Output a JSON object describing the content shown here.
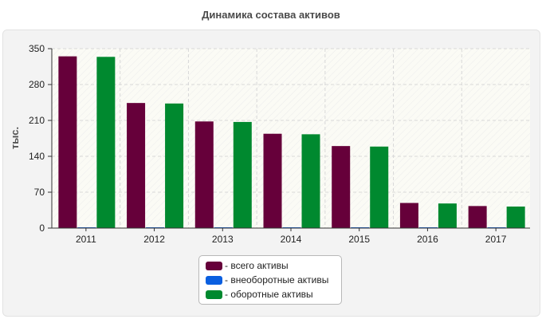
{
  "chart_data": {
    "type": "bar",
    "title": "Динамика состава активов",
    "ylabel": "тыс.",
    "xlabel": "",
    "ylim": [
      0,
      350
    ],
    "yticks": [
      0,
      70,
      140,
      210,
      280,
      350
    ],
    "categories": [
      "2011",
      "2012",
      "2013",
      "2014",
      "2015",
      "2016",
      "2017"
    ],
    "series": [
      {
        "name": "- всего активы",
        "color": "#66003a",
        "values": [
          335,
          244,
          208,
          184,
          160,
          49,
          43
        ]
      },
      {
        "name": "- внеоборотные активы",
        "color": "#0a5fe0",
        "values": [
          1.5,
          1.5,
          1.5,
          1.5,
          1.5,
          1.5,
          1.5
        ]
      },
      {
        "name": "- оборотные активы",
        "color": "#00892f",
        "values": [
          334,
          243,
          207,
          183,
          159,
          48,
          42
        ]
      }
    ],
    "grid": true,
    "legend_position": "bottom"
  }
}
